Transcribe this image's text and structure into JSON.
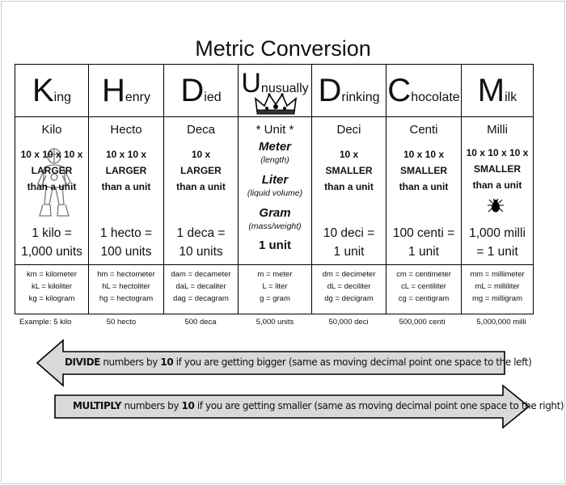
{
  "title": "Metric Conversion",
  "columns": [
    {
      "mn_big": "K",
      "mn_rest": "ing",
      "prefix": "Kilo",
      "factor": [
        "10 x 10 x 10 x",
        "LARGER",
        "than a unit"
      ],
      "eq1": "1 kilo =",
      "eq2": "1,000 units",
      "abbr": [
        "km = kilometer",
        "kL = kiloliter",
        "kg = kilogram"
      ],
      "example": "Example:  5 kilo",
      "picture": "knight"
    },
    {
      "mn_big": "H",
      "mn_rest": "enry",
      "prefix": "Hecto",
      "factor": [
        "10 x 10 x",
        "LARGER",
        "than a unit"
      ],
      "eq1": "1 hecto =",
      "eq2": "100 units",
      "abbr": [
        "hm = hectometer",
        "hL = hectoliter",
        "hg = hectogram"
      ],
      "example": "50 hecto"
    },
    {
      "mn_big": "D",
      "mn_rest": "ied",
      "prefix": "Deca",
      "factor": [
        "10 x",
        "LARGER",
        "than a unit"
      ],
      "eq1": "1 deca =",
      "eq2": "10 units",
      "abbr": [
        "dam = decameter",
        "daL = decaliter",
        "dag = decagram"
      ],
      "example": "500 deca"
    },
    {
      "mn_big": "U",
      "mn_rest": "nusually",
      "prefix": "* Unit *",
      "bases": [
        {
          "name": "Meter",
          "desc": "(length)"
        },
        {
          "name": "Liter",
          "desc": "(liquid volume)"
        },
        {
          "name": "Gram",
          "desc": "(mass/weight)"
        }
      ],
      "eq1": "1 unit",
      "abbr": [
        "m = meter",
        "L = liter",
        "g = gram"
      ],
      "example": "5,000 units",
      "picture": "crown"
    },
    {
      "mn_big": "D",
      "mn_rest": "rinking",
      "prefix": "Deci",
      "factor": [
        "10 x",
        "SMALLER",
        "than a unit"
      ],
      "eq1": "10 deci =",
      "eq2": "1 unit",
      "abbr": [
        "dm = decimeter",
        "dL = deciliter",
        "dg = decigram"
      ],
      "example": "50,000 deci"
    },
    {
      "mn_big": "C",
      "mn_rest": "hocolate",
      "prefix": "Centi",
      "factor": [
        "10 x 10 x",
        "SMALLER",
        "than a unit"
      ],
      "eq1": "100 centi =",
      "eq2": "1 unit",
      "abbr": [
        "cm = centimeter",
        "cL = centiliter",
        "cg = centigram"
      ],
      "example": "500,000 centi"
    },
    {
      "mn_big": "M",
      "mn_rest": "ilk",
      "prefix": "Milli",
      "factor": [
        "10 x 10 x 10 x",
        "SMALLER",
        "than a unit"
      ],
      "eq1": "1,000 milli",
      "eq2": "= 1 unit",
      "abbr": [
        "mm = millimeter",
        "mL = milliliter",
        "mg = milligram"
      ],
      "example": "5,000,000 milli",
      "picture": "bug"
    }
  ],
  "arrows": {
    "divide": {
      "verb": "DIVIDE",
      "mid": " numbers by ",
      "num": "10",
      "rest": " if you are getting bigger (same as moving decimal point one space to the left)",
      "direction": "left"
    },
    "multiply": {
      "verb": "MULTIPLY",
      "mid": " numbers by ",
      "num": "10",
      "rest": " if you are getting smaller (same as moving decimal point one space to the right)",
      "direction": "right"
    }
  },
  "colors": {
    "arrow_fill": "#d9d9d9",
    "border": "#000000"
  }
}
